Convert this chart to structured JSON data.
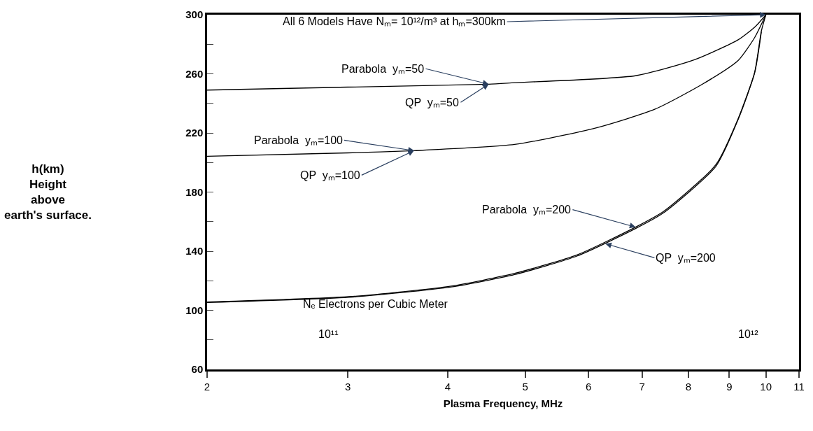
{
  "chart_data": {
    "type": "line",
    "xlabel": "Plasma Frequency, MHz",
    "log": "x",
    "marker": "none",
    "line_style": "solid",
    "xlim": [
      2,
      11
    ],
    "xticks": [
      2,
      3,
      4,
      5,
      6,
      7,
      8,
      9,
      10,
      11
    ],
    "ylim": [
      60,
      300
    ],
    "yticks": [
      60,
      {
        "value": 80,
        "label": null
      },
      100,
      {
        "value": 120,
        "label": null
      },
      140,
      {
        "value": 160,
        "label": null
      },
      180,
      {
        "value": 200,
        "label": null
      },
      220,
      {
        "value": 240,
        "label": null
      },
      260,
      {
        "value": 280,
        "label": null
      },
      300
    ],
    "series": [
      {
        "color": "#000000",
        "x": [
          2,
          3,
          4.5,
          4.85,
          6.87,
          8.14,
          9.23,
          9.7,
          10
        ],
        "values": [
          249,
          251,
          253,
          254,
          258.7,
          269.5,
          283,
          292,
          300
        ]
      },
      {
        "color": "#000000",
        "x": [
          2,
          3,
          3.63,
          4.85,
          6.14,
          7.26,
          8.33,
          9.23,
          9.68,
          10
        ],
        "values": [
          204.2,
          206.5,
          208,
          212.2,
          223.5,
          236,
          253,
          269,
          284.5,
          300
        ]
      },
      {
        "color": "#000000",
        "x": [
          2,
          3.04,
          4.04,
          4.85,
          5.81,
          6.87,
          7.45,
          8.66,
          9.23,
          9.68,
          9.87,
          10
        ],
        "values": [
          105.6,
          109.4,
          116.4,
          125,
          137.6,
          156.3,
          167,
          198.6,
          229.6,
          261,
          289,
          300
        ]
      },
      {
        "color": "#000000",
        "x": [
          2,
          3.04,
          4.04,
          4.85,
          5.81,
          6.87,
          7.45,
          8.66,
          9.23,
          9.68,
          9.87
        ],
        "values": [
          105.3,
          109,
          115.8,
          124.2,
          136.8,
          155.3,
          166,
          197.5,
          229,
          260.5,
          288.5
        ]
      }
    ],
    "annotations": [
      {
        "text": "All 6 Models Have Nₘ= 10¹²/m³ at hₘ=300km",
        "x": 10,
        "y": 300
      },
      {
        "text": "Parabola  yₘ=50",
        "x": 4.5,
        "y": 253
      },
      {
        "text": "QP  yₘ=50",
        "x": 4.5,
        "y": 253
      },
      {
        "text": "Parabola  yₘ=100",
        "x": 3.63,
        "y": 208
      },
      {
        "text": "QP  yₘ=100",
        "x": 3.63,
        "y": 208
      },
      {
        "text": "Parabola  yₘ=200",
        "x": 6.87,
        "y": 156.3
      },
      {
        "text": "QP  yₘ=200",
        "x": 6.3,
        "y": 145
      },
      "Nₑ Electrons per Cubic Meter",
      "10¹¹",
      "10¹²",
      "h(km)\nHeight\nabove\nearth's surface."
    ]
  }
}
